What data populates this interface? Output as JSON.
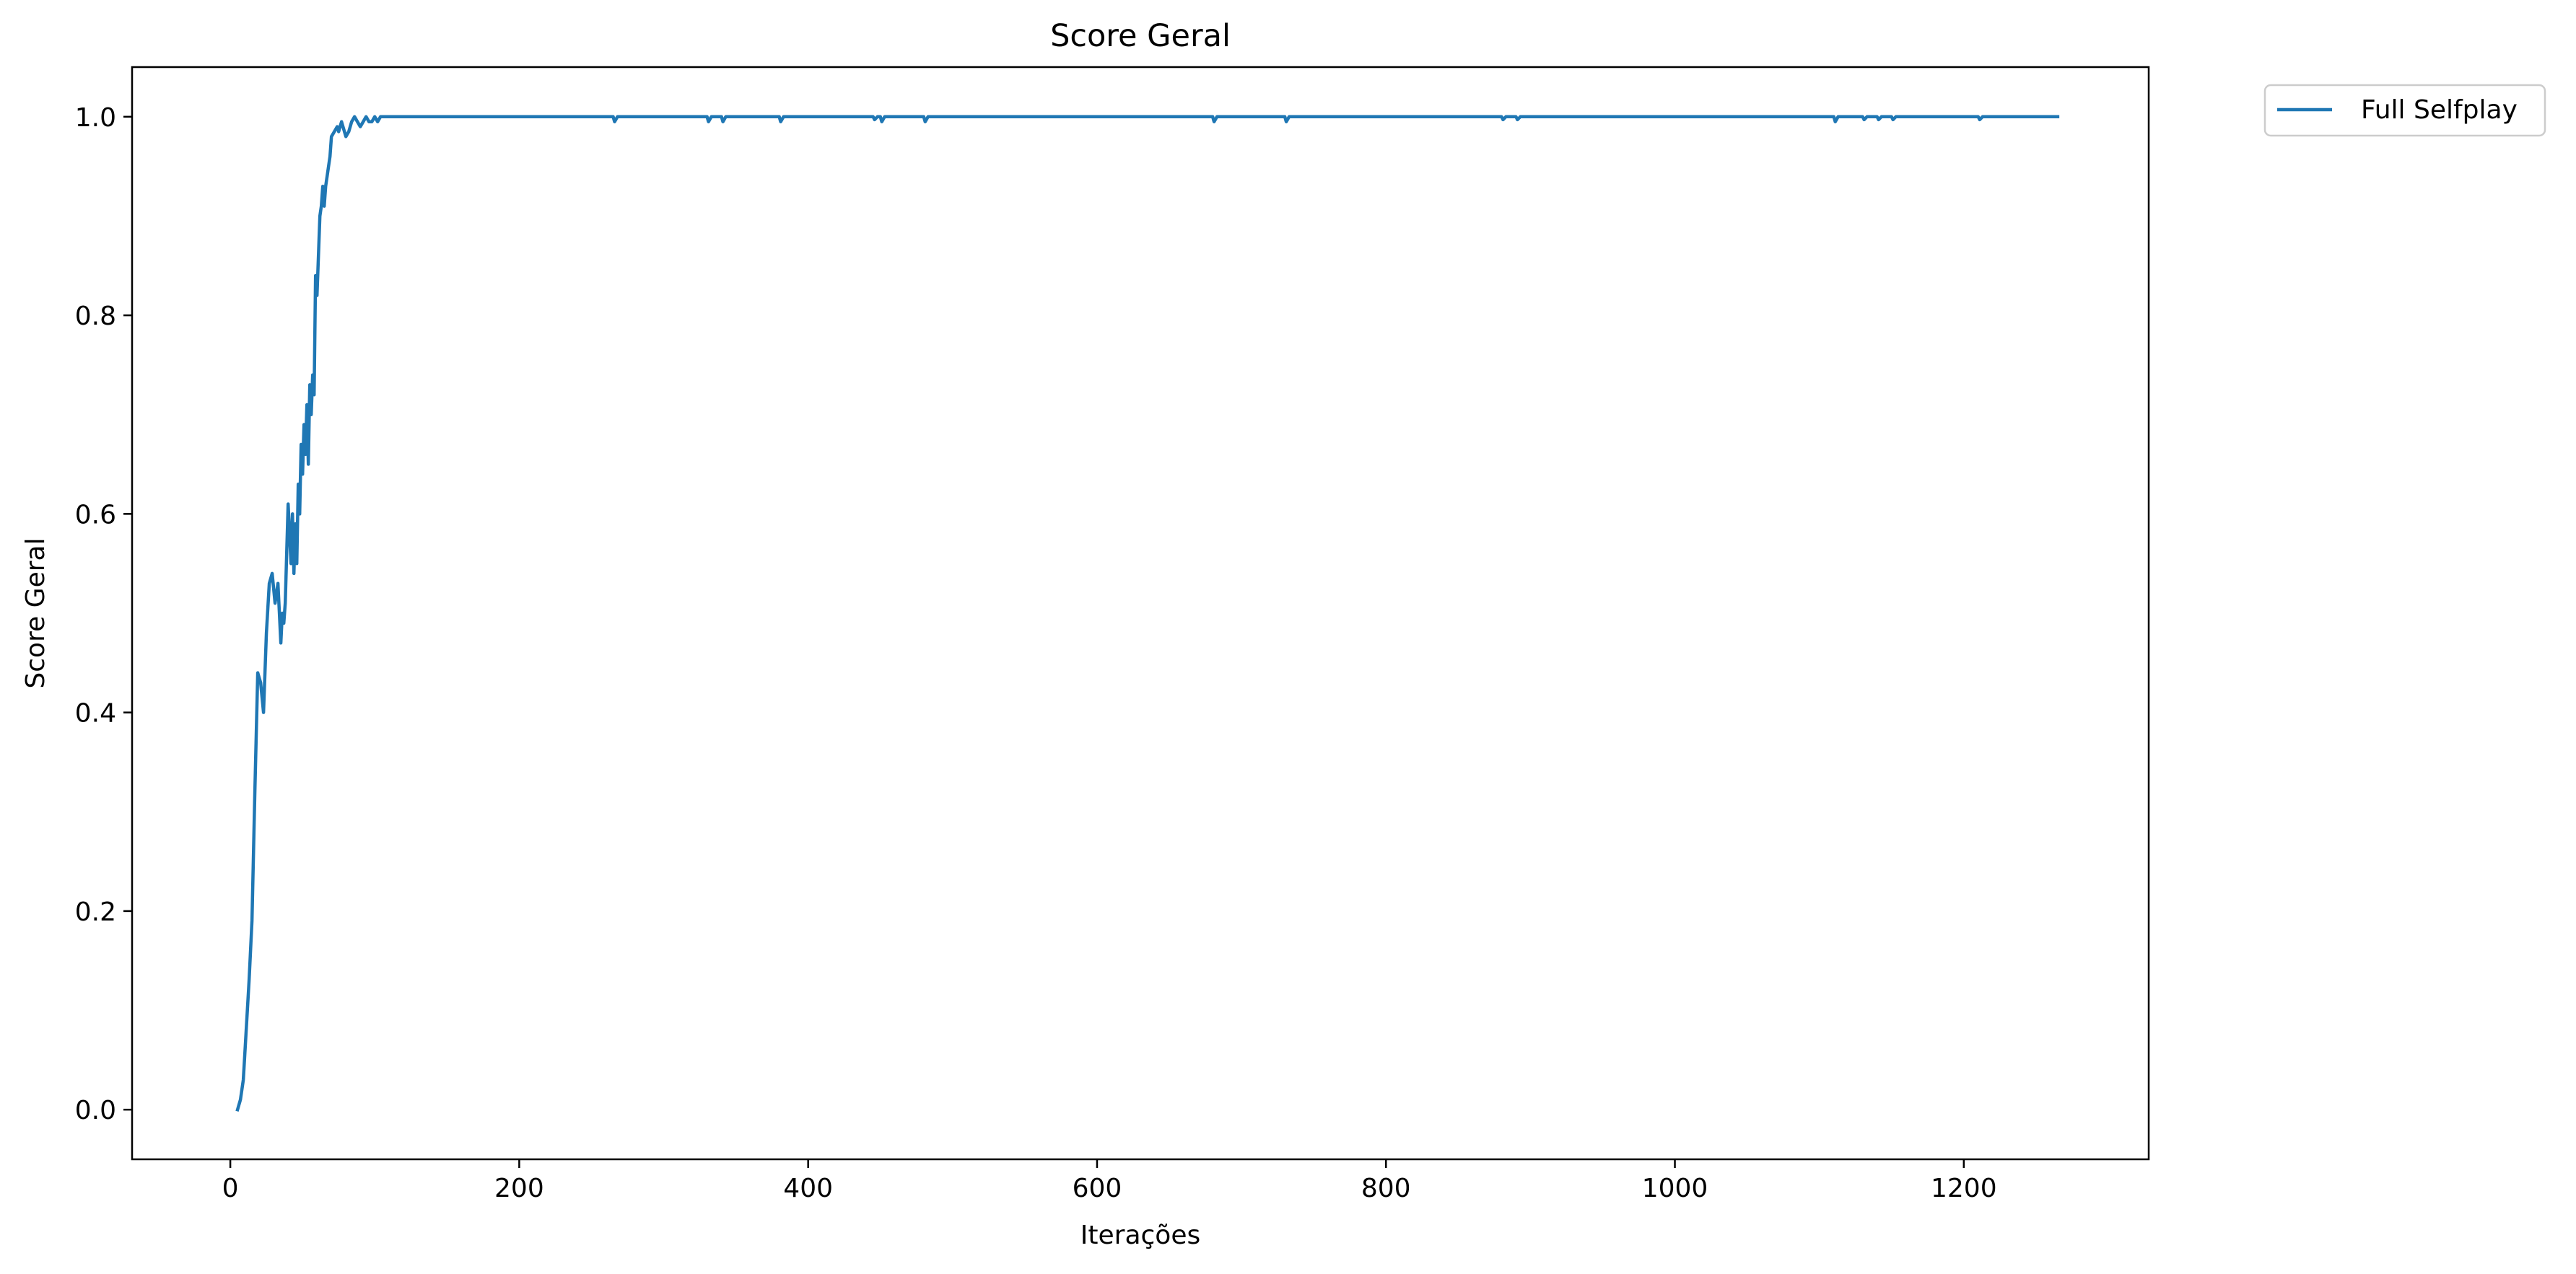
{
  "chart_data": {
    "type": "line",
    "title": "Score Geral",
    "xlabel": "Iterações",
    "ylabel": "Score Geral",
    "xlim": [
      -68,
      1328
    ],
    "ylim": [
      -0.05,
      1.05
    ],
    "xticks": [
      0,
      200,
      400,
      600,
      800,
      1000,
      1200
    ],
    "yticks": [
      0.0,
      0.2,
      0.4,
      0.6,
      0.8,
      1.0
    ],
    "xtick_labels": [
      "0",
      "200",
      "400",
      "600",
      "800",
      "1000",
      "1200"
    ],
    "ytick_labels": [
      "0.0",
      "0.2",
      "0.4",
      "0.6",
      "0.8",
      "1.0"
    ],
    "grid": false,
    "legend_position": "outside-top-right",
    "series": [
      {
        "name": "Full Selfplay",
        "color": "#1f77b4",
        "x": [
          5,
          7,
          9,
          11,
          13,
          15,
          17,
          19,
          21,
          23,
          25,
          27,
          29,
          31,
          33,
          35,
          36,
          37,
          38,
          40,
          42,
          43,
          44,
          45,
          46,
          47,
          48,
          49,
          50,
          51,
          52,
          53,
          54,
          55,
          56,
          57,
          58,
          59,
          60,
          61,
          62,
          63,
          64,
          65,
          66,
          67,
          68,
          69,
          70,
          72,
          74,
          75,
          76,
          77,
          78,
          80,
          82,
          84,
          86,
          88,
          90,
          92,
          94,
          96,
          98,
          100,
          102,
          104,
          106,
          108,
          110,
          112,
          114,
          116,
          118,
          120,
          265,
          266,
          268,
          330,
          331,
          333,
          340,
          341,
          343,
          380,
          381,
          383,
          445,
          446,
          448,
          450,
          451,
          453,
          480,
          481,
          483,
          680,
          681,
          683,
          730,
          731,
          733,
          880,
          881,
          883,
          890,
          891,
          893,
          1110,
          1111,
          1113,
          1130,
          1131,
          1133,
          1140,
          1141,
          1143,
          1150,
          1151,
          1153,
          1210,
          1211,
          1213,
          1265
        ],
        "values": [
          0.0,
          0.01,
          0.03,
          0.08,
          0.13,
          0.19,
          0.32,
          0.44,
          0.43,
          0.4,
          0.48,
          0.53,
          0.54,
          0.51,
          0.53,
          0.47,
          0.5,
          0.49,
          0.51,
          0.61,
          0.55,
          0.6,
          0.54,
          0.59,
          0.55,
          0.63,
          0.6,
          0.67,
          0.64,
          0.69,
          0.66,
          0.71,
          0.65,
          0.73,
          0.7,
          0.74,
          0.72,
          0.84,
          0.82,
          0.86,
          0.9,
          0.91,
          0.93,
          0.91,
          0.93,
          0.94,
          0.95,
          0.96,
          0.98,
          0.985,
          0.99,
          0.985,
          0.99,
          0.995,
          0.99,
          0.98,
          0.985,
          0.995,
          1.0,
          0.995,
          0.99,
          0.995,
          1.0,
          0.995,
          0.995,
          1.0,
          0.995,
          1.0,
          1.0,
          1.0,
          1.0,
          1.0,
          1.0,
          1.0,
          1.0,
          1.0,
          1.0,
          0.995,
          1.0,
          1.0,
          0.995,
          1.0,
          1.0,
          0.995,
          1.0,
          1.0,
          0.995,
          1.0,
          1.0,
          0.997,
          1.0,
          1.0,
          0.995,
          1.0,
          1.0,
          0.995,
          1.0,
          1.0,
          0.995,
          1.0,
          1.0,
          0.995,
          1.0,
          1.0,
          0.997,
          1.0,
          1.0,
          0.997,
          1.0,
          1.0,
          0.995,
          1.0,
          1.0,
          0.997,
          1.0,
          1.0,
          0.997,
          1.0,
          1.0,
          0.997,
          1.0,
          1.0,
          0.997,
          1.0,
          1.0
        ]
      }
    ]
  }
}
